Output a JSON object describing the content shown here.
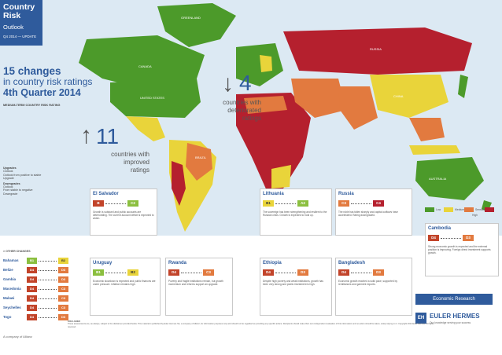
{
  "header": {
    "title_line1": "Country",
    "title_line2": "Risk",
    "subtitle": "Outlook",
    "edition": "Q4 2014 — UPDATE"
  },
  "headline": {
    "line1": "15 changes",
    "line2": "in country risk ratings",
    "line3": "4th Quarter 2014"
  },
  "sublabel": "MEDIUM-TERM COUNTRY RISK RATING",
  "left_legend": {
    "upgrade_title": "Upgrades",
    "upgrade_lines": [
      "Outlook",
      "Outlook from positive to stable",
      "Upgrade"
    ],
    "downgrade_title": "Downgrades",
    "downgrade_lines": [
      "Outlook",
      "From stable to negative",
      "Downgrade"
    ]
  },
  "stats": {
    "improved_num": "11",
    "improved_caption": [
      "countries with",
      "improved",
      "ratings"
    ],
    "deteriorated_num": "4",
    "deteriorated_caption": [
      "countries with",
      "deteriorated",
      "ratings"
    ]
  },
  "map_labels": {
    "greenland": "GREENLAND",
    "canada": "CANADA",
    "usa": "UNITED STATES",
    "brazil": "BRAZIL",
    "china": "CHINA",
    "australia": "AUSTRALIA",
    "russia": "RUSSIA"
  },
  "rating_legend": [
    "Low",
    "Medium",
    "Sensitive",
    "High"
  ],
  "colors": {
    "brand": "#2f5b9c",
    "low": "#4c9a2a",
    "medium": "#e9d43a",
    "sensitive": "#e27a3f",
    "high": "#b5202e",
    "upgrade_badge": "#8bbf3f",
    "downgrade_badge": "#c2442a"
  },
  "cards": [
    {
      "name": "El Salvador",
      "old": "B",
      "new": "C2",
      "text": "Growth is subdued and public accounts are deteriorating. The current account deficit is expected to widen."
    },
    {
      "name": "Lithuania",
      "old": "B1",
      "new": "A2",
      "text": "The sovereign has been strengthening and resilient to the Russian crisis. Growth is expected to hold up."
    },
    {
      "name": "Russia",
      "old": "C3",
      "new": "C4",
      "text": "The ruble has fallen sharply and capital outflows have accelerated. Rating downgraded."
    },
    {
      "name": "Cambodia",
      "old": "D4",
      "new": "D3",
      "text": "Strong economic growth is expected and the external position is improving. Foreign direct investment supports growth."
    },
    {
      "name": "Uruguay",
      "old": "B1",
      "new": "B2",
      "text": "Economic slowdown is expected and public finances are under pressure. Inflation remains high."
    },
    {
      "name": "Rwanda",
      "old": "D4",
      "new": "C3",
      "text": "Poverty and fragile institutions remain, but growth momentum and reforms support an upgrade."
    },
    {
      "name": "Ethiopia",
      "old": "D4",
      "new": "D3",
      "text": "Despite high poverty and weak institutions, growth has been very strong and public investment is high."
    },
    {
      "name": "Bangladesh",
      "old": "D4",
      "new": "D3",
      "text": "Economic growth reached a solid pace, supported by remittances and garment exports."
    }
  ],
  "other_changes": {
    "title": "> OTHER CHANGES",
    "rows": [
      {
        "country": "Bahamas",
        "old": "B1",
        "new": "B2"
      },
      {
        "country": "Belize",
        "old": "D4",
        "new": "D3"
      },
      {
        "country": "Gambia",
        "old": "D4",
        "new": "D3"
      },
      {
        "country": "Macedonia",
        "old": "D4",
        "new": "C3"
      },
      {
        "country": "Malawi",
        "old": "D4",
        "new": "C3"
      },
      {
        "country": "Seychelles",
        "old": "D4",
        "new": "C3"
      },
      {
        "country": "Togo",
        "old": "D4",
        "new": "D3"
      }
    ]
  },
  "footer": {
    "econ_research": "Economic Research",
    "logo_text": "EH",
    "company": "EULER HERMES",
    "tagline": "Our knowledge serving your success",
    "allianz": "A company of Allianz",
    "disclaimer_title": "DISCLAIMER",
    "disclaimer": "These assessments are, as always, subject to the disclaimer provided below. This material is published by Euler Hermes SA, a company of Allianz, for information purposes only and should not be regarded as providing any specific advice. Recipients should make their own independent evaluation of this information and no action should be taken, solely relying on it. Copyright 2014 Euler Hermes. All rights reserved."
  }
}
